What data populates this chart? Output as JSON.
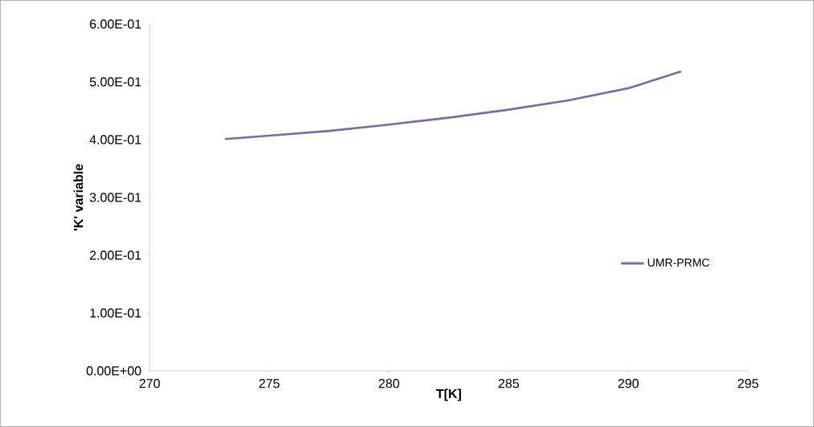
{
  "chart_data": {
    "type": "line",
    "xlabel": "T[K]",
    "ylabel": "'K' variable",
    "xlim": [
      270,
      295
    ],
    "xticks": [
      270,
      275,
      280,
      285,
      290,
      295
    ],
    "ylim": [
      0,
      0.6
    ],
    "yticks": [
      {
        "value": 0,
        "label": "0.00E+00"
      },
      {
        "value": 0.1,
        "label": "1.00E-01"
      },
      {
        "value": 0.2,
        "label": "2.00E-01"
      },
      {
        "value": 0.3,
        "label": "3.00E-01"
      },
      {
        "value": 0.4,
        "label": "4.00E-01"
      },
      {
        "value": 0.5,
        "label": "5.00E-01"
      },
      {
        "value": 0.6,
        "label": "6.00E-01"
      }
    ],
    "grid": false,
    "legend": "right",
    "marker": "none",
    "line_style": "solid",
    "series": [
      {
        "name": "UMR-PRMC",
        "color": "#7f6a9f",
        "x": [
          273.15,
          275,
          277.5,
          280,
          282.5,
          285,
          287.5,
          290,
          292.2
        ],
        "values": [
          0.401,
          0.407,
          0.415,
          0.426,
          0.438,
          0.452,
          0.468,
          0.489,
          0.518
        ]
      }
    ]
  }
}
